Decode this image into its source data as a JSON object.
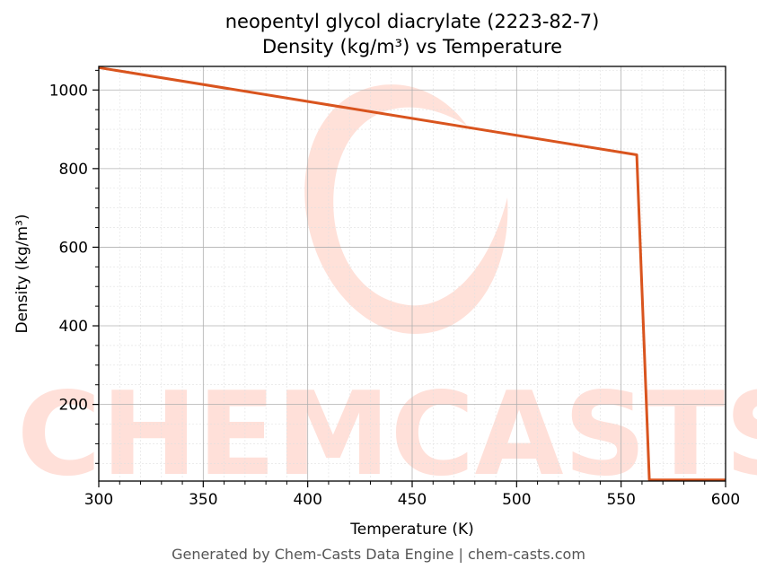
{
  "header": {
    "title_line1": "neopentyl glycol diacrylate (2223-82-7)",
    "title_line2": "Density (kg/m³) vs Temperature"
  },
  "footer": {
    "text": "Generated by Chem-Casts Data Engine | chem-casts.com"
  },
  "watermark": {
    "text": "CHEMCASTS"
  },
  "colors": {
    "line": "#d9541e",
    "watermark": "#ffd9d0",
    "grid_major": "#b0b0b0",
    "grid_minor": "#e0e0e0"
  },
  "chart_data": {
    "type": "line",
    "title": "neopentyl glycol diacrylate (2223-82-7)\nDensity (kg/m³) vs Temperature",
    "xlabel": "Temperature (K)",
    "ylabel": "Density (kg/m³)",
    "xlim": [
      300,
      600
    ],
    "ylim": [
      5,
      1060
    ],
    "xticks": [
      300,
      350,
      400,
      450,
      500,
      550,
      600
    ],
    "yticks": [
      200,
      400,
      600,
      800,
      1000
    ],
    "grid": true,
    "series": [
      {
        "x": [
          300,
          557.5,
          563.5,
          600
        ],
        "y": [
          1057,
          835,
          8,
          8
        ]
      }
    ]
  }
}
